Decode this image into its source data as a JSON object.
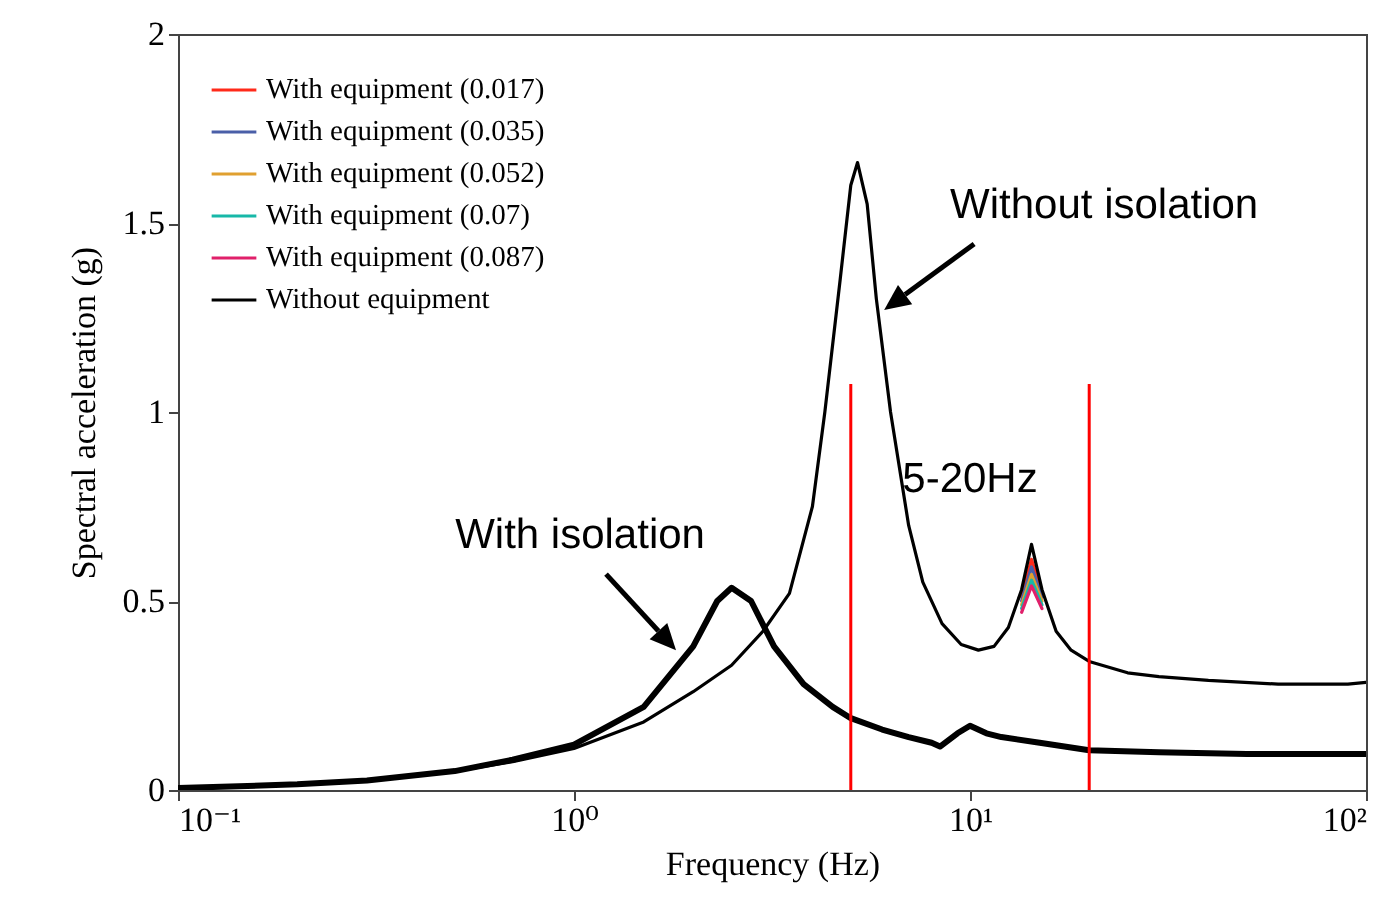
{
  "chart_data": {
    "type": "line",
    "xlabel": "Frequency (Hz)",
    "ylabel": "Spectral acceleration (g)",
    "log": "x",
    "xlim": [
      0.1,
      100
    ],
    "ylim": [
      0,
      2
    ],
    "xticks": [
      {
        "value": 0.1,
        "label": "10⁻¹"
      },
      {
        "value": 1,
        "label": "10⁰"
      },
      {
        "value": 10,
        "label": "10¹"
      },
      {
        "value": 100,
        "label": "10²"
      }
    ],
    "yticks": [
      0,
      0.5,
      1,
      1.5,
      2
    ],
    "grid": false,
    "legend": "top left",
    "marker": "none",
    "line_style": "solid",
    "x": [
      0.1,
      0.15,
      0.2,
      0.3,
      0.5,
      0.7,
      1,
      1.5,
      2,
      2.5,
      3,
      3.5,
      4,
      4.3,
      4.7,
      5,
      5.2,
      5.5,
      5.8,
      6.3,
      7,
      7.6,
      8.5,
      9.5,
      10.5,
      11.5,
      12.5,
      13.5,
      14.3,
      15.2,
      16.5,
      18,
      20,
      25,
      30,
      40,
      60,
      90,
      100
    ],
    "series": [
      {
        "name": "With equipment (0.017)",
        "color": "#ff2a1a",
        "values": [
          null,
          null,
          null,
          null,
          null,
          null,
          null,
          null,
          null,
          null,
          null,
          null,
          null,
          null,
          null,
          null,
          null,
          null,
          null,
          null,
          null,
          null,
          null,
          null,
          null,
          null,
          null,
          0.51,
          0.61,
          0.52,
          null,
          null,
          null,
          null,
          null,
          null,
          null,
          null,
          null
        ]
      },
      {
        "name": "With equipment (0.035)",
        "color": "#4a5fa8",
        "values": [
          null,
          null,
          null,
          null,
          null,
          null,
          null,
          null,
          null,
          null,
          null,
          null,
          null,
          null,
          null,
          null,
          null,
          null,
          null,
          null,
          null,
          null,
          null,
          null,
          null,
          null,
          null,
          0.5,
          0.59,
          0.51,
          null,
          null,
          null,
          null,
          null,
          null,
          null,
          null,
          null
        ]
      },
      {
        "name": "With equipment (0.052)",
        "color": "#e0a030",
        "values": [
          null,
          null,
          null,
          null,
          null,
          null,
          null,
          null,
          null,
          null,
          null,
          null,
          null,
          null,
          null,
          null,
          null,
          null,
          null,
          null,
          null,
          null,
          null,
          null,
          null,
          null,
          null,
          0.49,
          0.57,
          0.5,
          null,
          null,
          null,
          null,
          null,
          null,
          null,
          null,
          null
        ]
      },
      {
        "name": "With equipment (0.07)",
        "color": "#17b8a8",
        "values": [
          null,
          null,
          null,
          null,
          null,
          null,
          null,
          null,
          null,
          null,
          null,
          null,
          null,
          null,
          null,
          null,
          null,
          null,
          null,
          null,
          null,
          null,
          null,
          null,
          null,
          null,
          null,
          0.48,
          0.555,
          0.49,
          null,
          null,
          null,
          null,
          null,
          null,
          null,
          null,
          null
        ]
      },
      {
        "name": "With equipment (0.087)",
        "color": "#e0206a",
        "values": [
          null,
          null,
          null,
          null,
          null,
          null,
          null,
          null,
          null,
          null,
          null,
          null,
          null,
          null,
          null,
          null,
          null,
          null,
          null,
          null,
          null,
          null,
          null,
          null,
          null,
          null,
          null,
          0.47,
          0.54,
          0.48,
          null,
          null,
          null,
          null,
          null,
          null,
          null,
          null,
          null
        ]
      },
      {
        "name": "Without equipment",
        "color": "#000000",
        "values": [
          0.005,
          0.01,
          0.015,
          0.025,
          0.05,
          0.075,
          0.11,
          0.18,
          0.26,
          0.33,
          0.42,
          0.52,
          0.75,
          1.0,
          1.35,
          1.6,
          1.66,
          1.55,
          1.3,
          1.0,
          0.7,
          0.55,
          0.44,
          0.385,
          0.37,
          0.38,
          0.43,
          0.53,
          0.65,
          0.53,
          0.42,
          0.37,
          0.34,
          0.31,
          0.3,
          0.29,
          0.28,
          0.28,
          0.285
        ]
      },
      {
        "color": "#000000",
        "x": [
          0.1,
          0.2,
          0.3,
          0.5,
          0.7,
          1,
          1.5,
          2,
          2.3,
          2.5,
          2.8,
          3.2,
          3.8,
          4.5,
          5,
          6,
          7,
          8,
          8.4,
          9.3,
          10,
          11,
          12,
          15,
          20,
          30,
          50,
          100
        ],
        "values": [
          0.005,
          0.015,
          0.025,
          0.05,
          0.08,
          0.12,
          0.22,
          0.38,
          0.5,
          0.535,
          0.5,
          0.38,
          0.28,
          0.22,
          0.19,
          0.16,
          0.14,
          0.125,
          0.115,
          0.15,
          0.17,
          0.15,
          0.14,
          0.125,
          0.105,
          0.1,
          0.095,
          0.095
        ]
      }
    ],
    "ref_lines": [
      {
        "axis": "x",
        "value": 5,
        "color": "#ff0000"
      },
      {
        "axis": "x",
        "value": 20,
        "color": "#ff0000"
      }
    ],
    "annotations": [
      {
        "text": "Without isolation",
        "x": 6.07,
        "y": 1.27
      },
      {
        "text": "With isolation",
        "x": 1.81,
        "y": 0.37
      },
      "5-20Hz"
    ]
  }
}
